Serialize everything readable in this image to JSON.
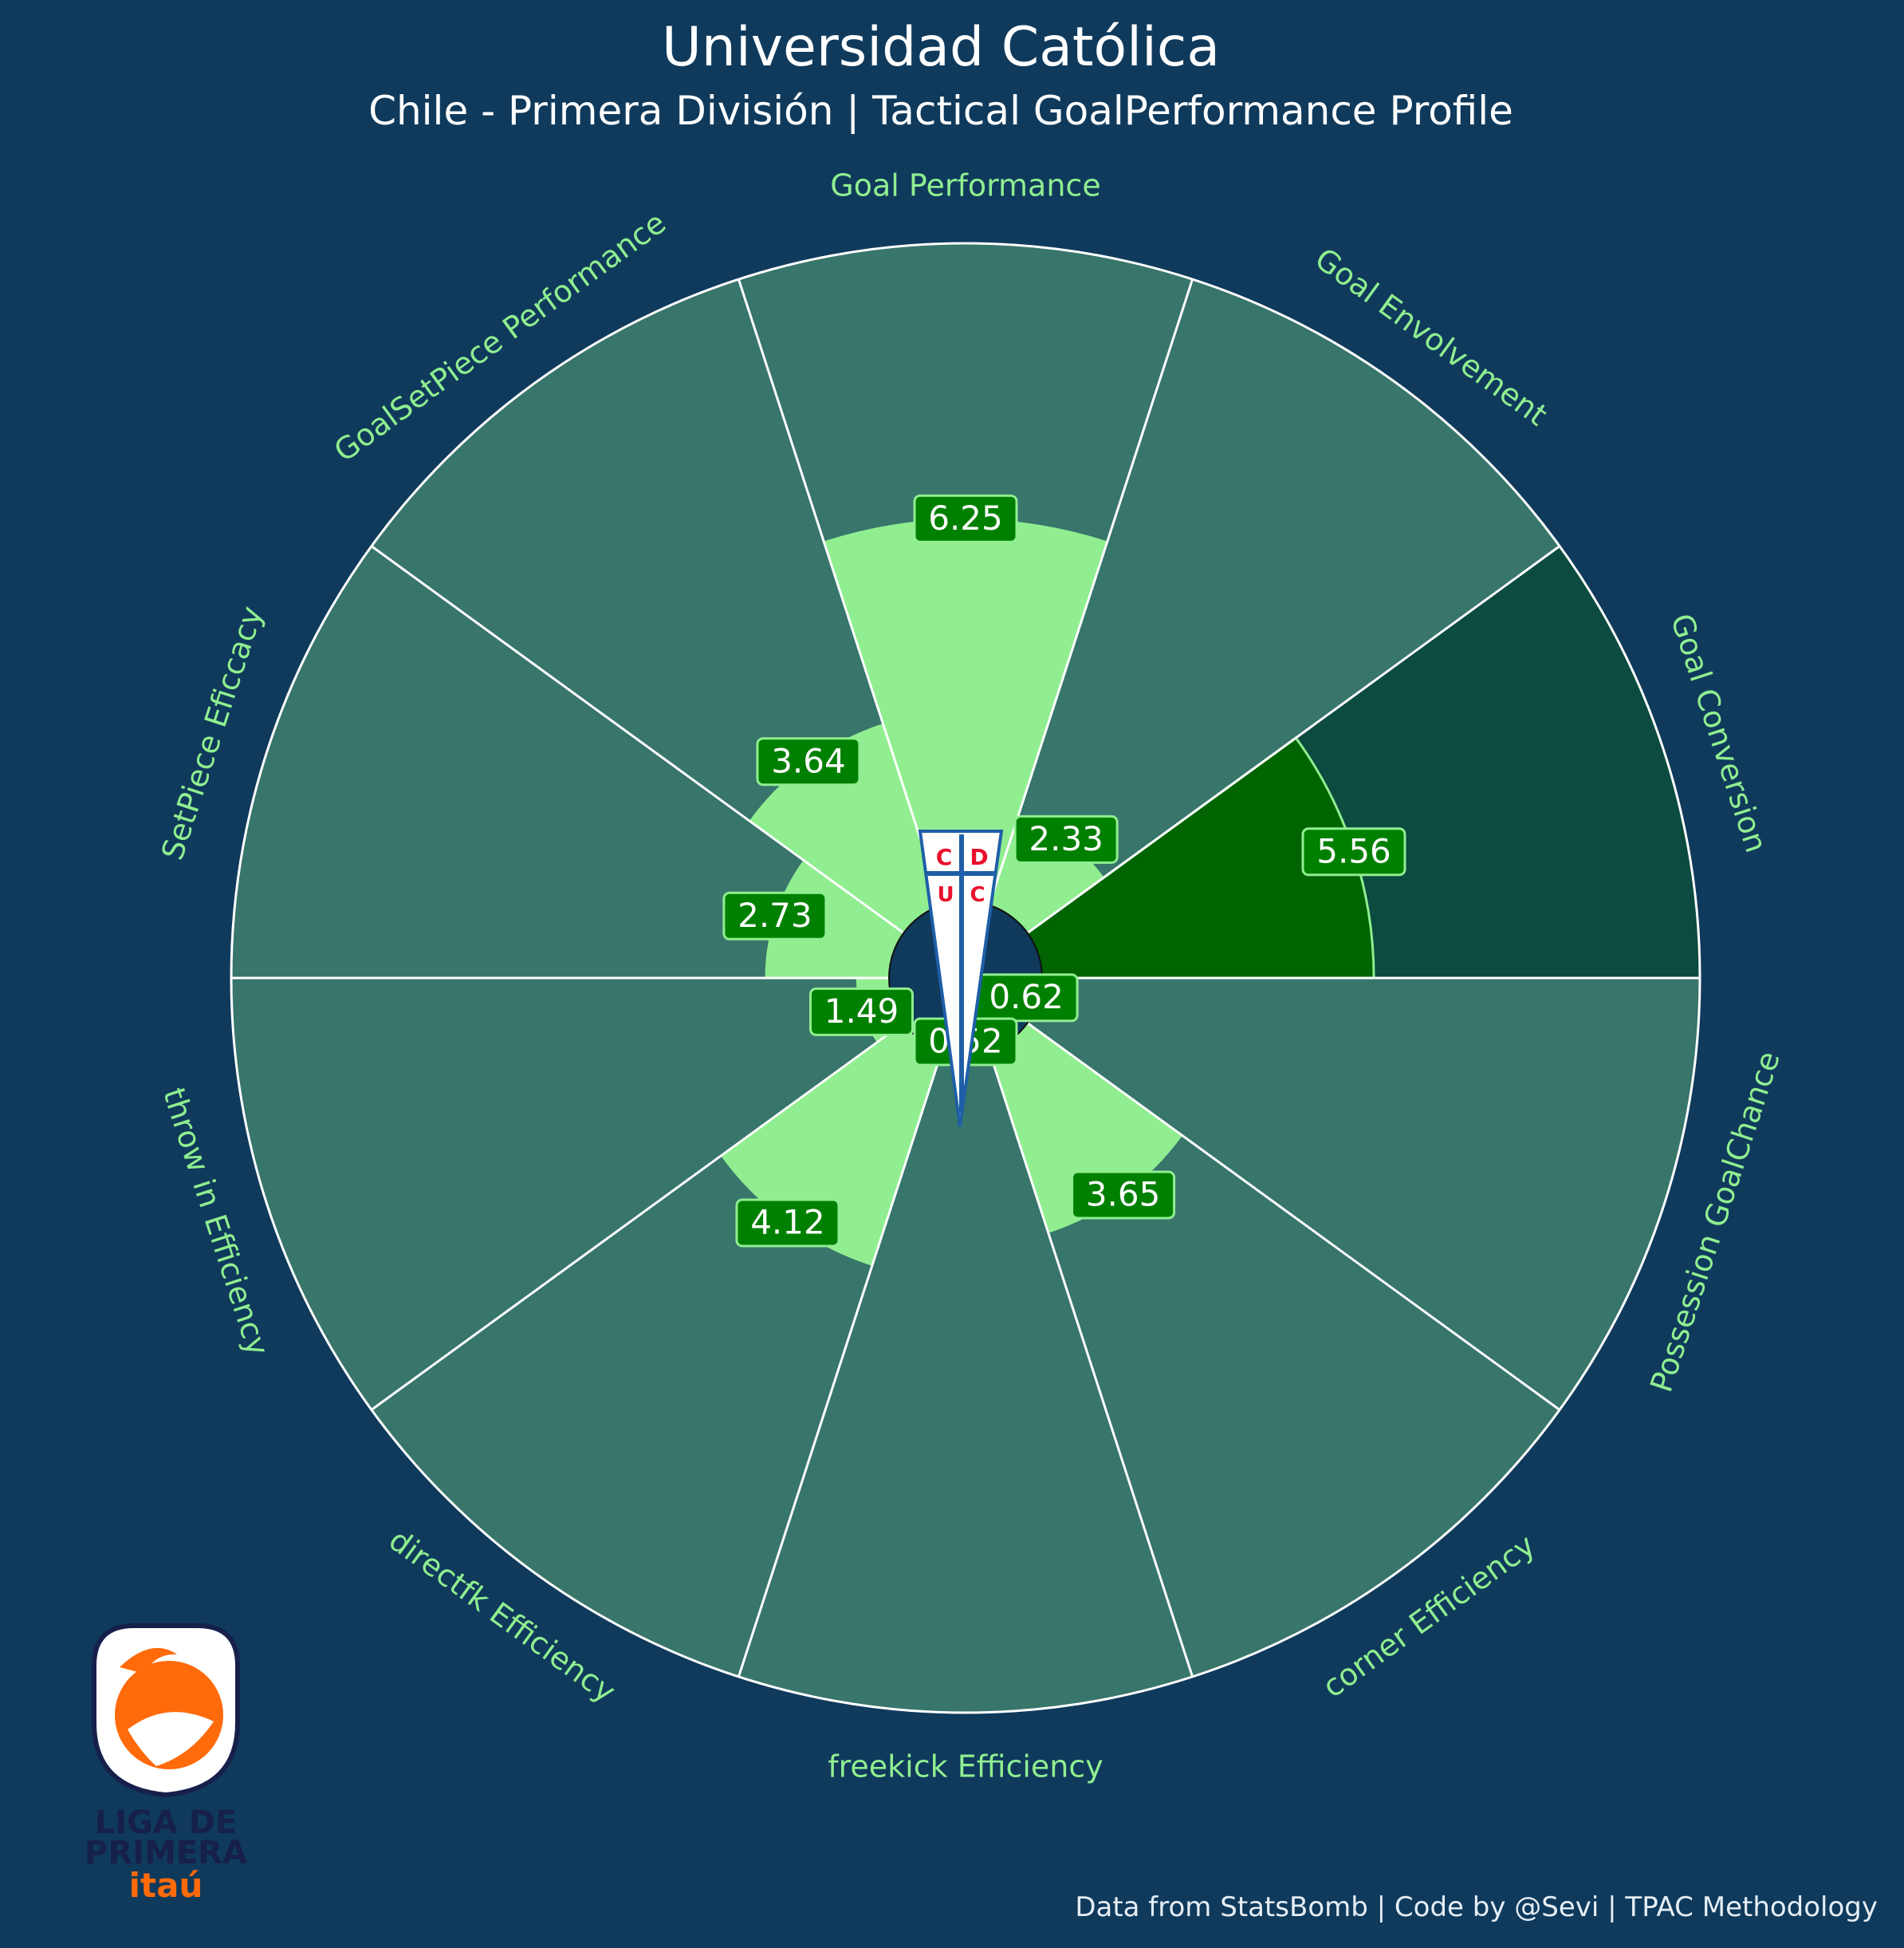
{
  "title": "Universidad Católica",
  "subtitle": "Chile - Primera División | Tactical GoalPerformance Profile",
  "footer": "Data from StatsBomb | Code by @Sevi | TPAC Methodology",
  "colors": {
    "background": "#0f3a5c",
    "sector_bg": "#38756b",
    "sector_bg_highlight": "#0b4b40",
    "bar": "#90ee90",
    "bar_highlight": "#006400",
    "label_box": "#008000",
    "category_text": "#90ee90",
    "title_text": "#ffffff"
  },
  "chart_data": {
    "type": "polar-bar",
    "title": "Universidad Católica",
    "subtitle": "Chile - Primera División | Tactical GoalPerformance Profile",
    "rmax": 10,
    "highlight_index": 2,
    "categories": [
      "Goal Performance",
      "Goal Envolvement",
      "Goal Conversion",
      "Possession GoalChance",
      "corner Efficiency",
      "freekick Efficiency",
      "directfk Efficiency",
      "throw in Efficiency",
      "SetPiece Eficcacy",
      "GoalSetPiece Performance"
    ],
    "values": [
      6.25,
      2.33,
      5.56,
      0.62,
      3.65,
      0.52,
      4.12,
      1.49,
      2.73,
      3.64
    ],
    "value_labels": [
      "6.25",
      "2.33",
      "5.56",
      "0.62",
      "3.65",
      "0.52",
      "4.12",
      "1.49",
      "2.73",
      "3.64"
    ]
  },
  "badge": {
    "letters": [
      "C",
      "D",
      "U",
      "C"
    ]
  },
  "league_logo": {
    "line1": "LIGA DE",
    "line2": "PRIMERA",
    "line3": "itaú"
  }
}
